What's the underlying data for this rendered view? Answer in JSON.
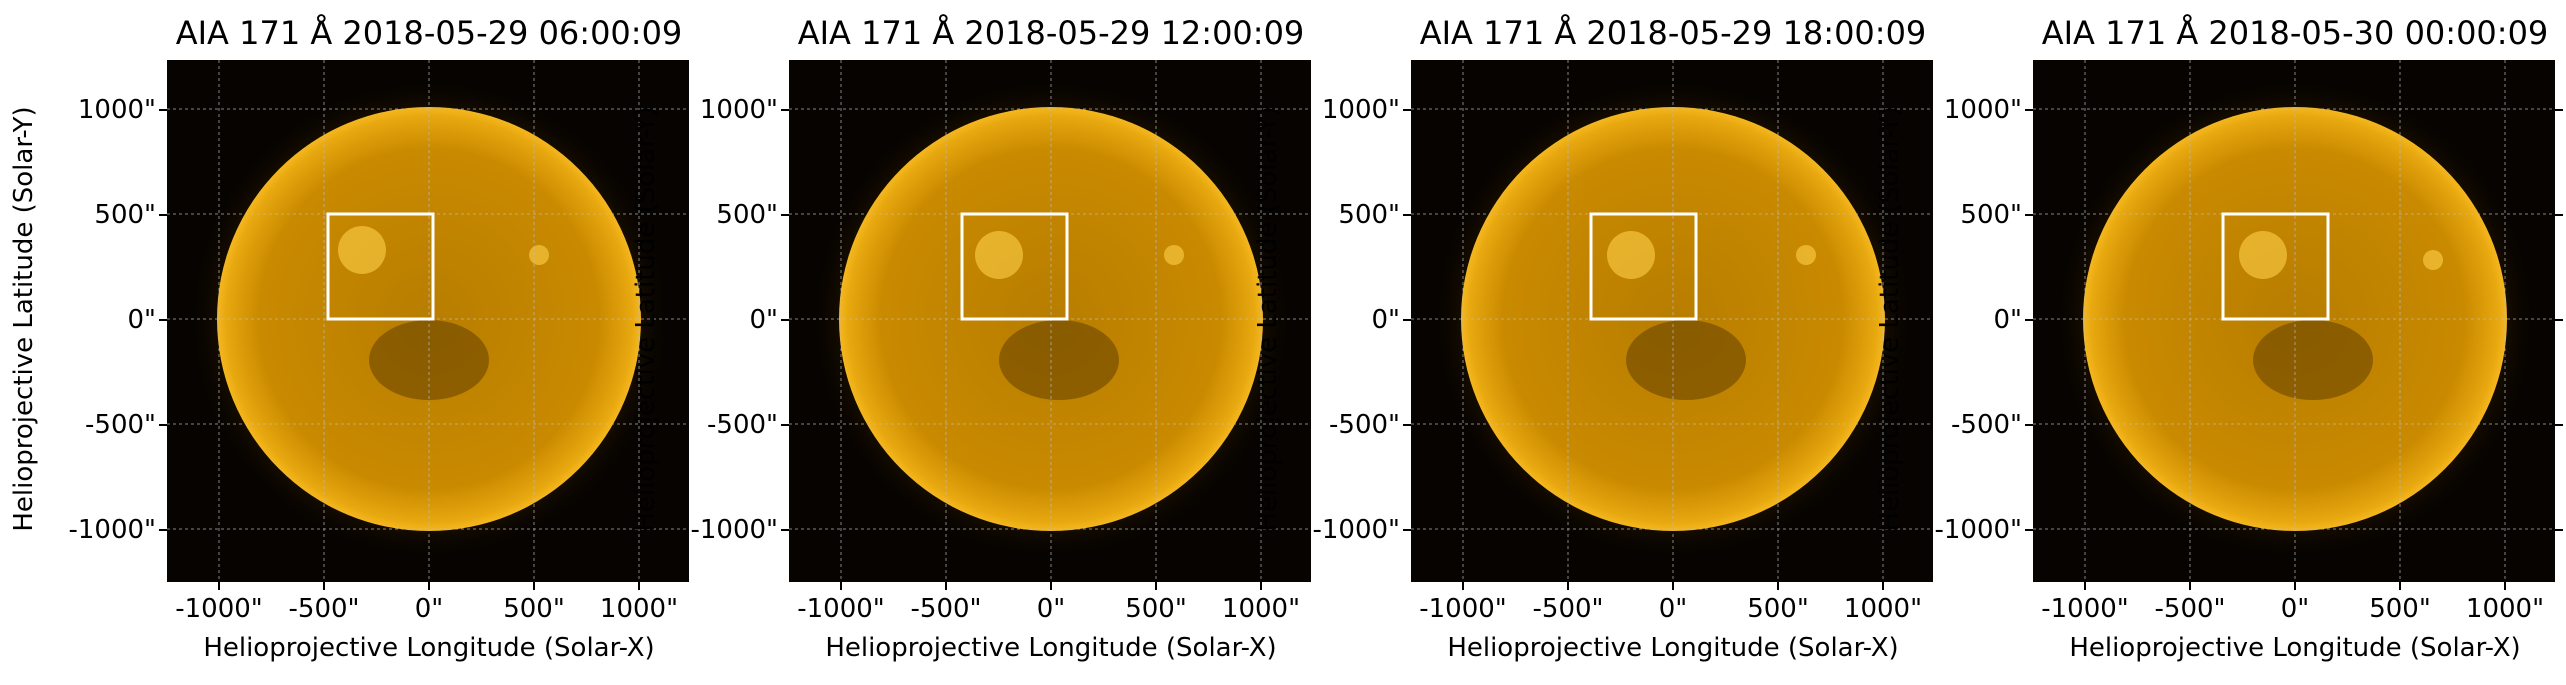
{
  "axes": {
    "xlabel": "Helioprojective Longitude (Solar-X)",
    "ylabel": "Helioprojective Latitude (Solar-Y)",
    "xticks": [
      "-1000\"",
      "-500\"",
      "0\"",
      "500\"",
      "1000\""
    ],
    "yticks": [
      "1000\"",
      "500\"",
      "0\"",
      "-500\"",
      "-1000\""
    ]
  },
  "colors": {
    "sun_core": "#c98a00",
    "sun_limb": "#f2b21c",
    "sky": "#070300",
    "box": "#ffffff",
    "grid": "#bbbbbb"
  },
  "panels": [
    {
      "title": "AIA 171 Å 2018-05-29 06:00:09"
    },
    {
      "title": "AIA 171 Å 2018-05-29 12:00:09"
    },
    {
      "title": "AIA 171 Å 2018-05-29 18:00:09"
    },
    {
      "title": "AIA 171 Å 2018-05-30 00:00:09"
    }
  ]
}
